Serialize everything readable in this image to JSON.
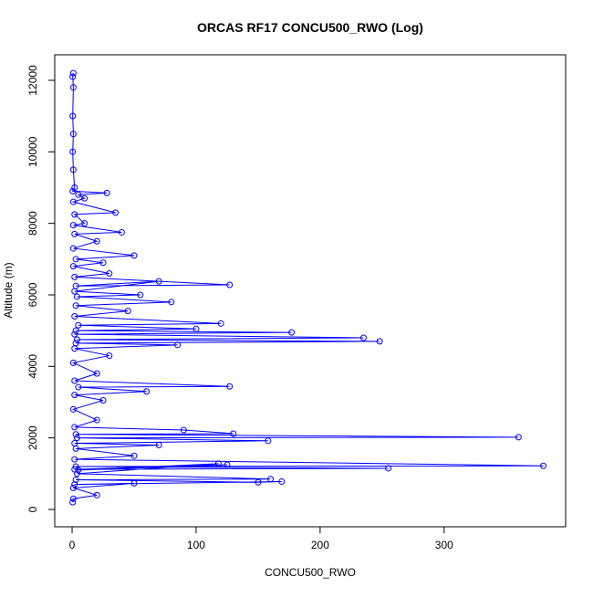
{
  "chart_data": {
    "type": "line",
    "title": "ORCAS RF17 CONCU500_RWO (Log)",
    "x_label": "CONCU500_RWO",
    "y_label": "Altitude (m)",
    "color": "#0000ff",
    "x": [
      1,
      0.5,
      1,
      0.5,
      1,
      0.5,
      1,
      2,
      0.5,
      28,
      5,
      10,
      1,
      35,
      2,
      10,
      1,
      40,
      2,
      20,
      1,
      50,
      3,
      25,
      1,
      30,
      2,
      127,
      3,
      70,
      2,
      55,
      4,
      80,
      3,
      45,
      2,
      120,
      5,
      100,
      3,
      177,
      2,
      235,
      4,
      248,
      3,
      85,
      2,
      30,
      1,
      20,
      2,
      127,
      5,
      60,
      2,
      25,
      1,
      20,
      2,
      90,
      130,
      3,
      360,
      4,
      158,
      2,
      70,
      3,
      50,
      2,
      380,
      3,
      255,
      2,
      125,
      5,
      118,
      4,
      160,
      3,
      150,
      169,
      2,
      50,
      1,
      20,
      1,
      0.5
    ],
    "values": [
      12200,
      12100,
      11800,
      11000,
      10500,
      10000,
      9500,
      9000,
      8900,
      8850,
      8800,
      8700,
      8600,
      8300,
      8250,
      8000,
      7950,
      7750,
      7700,
      7500,
      7300,
      7100,
      7000,
      6900,
      6800,
      6600,
      6500,
      6280,
      6250,
      6380,
      6100,
      6000,
      5950,
      5800,
      5700,
      5550,
      5400,
      5200,
      5150,
      5050,
      5000,
      4950,
      4900,
      4800,
      4750,
      4700,
      4650,
      4600,
      4500,
      4300,
      4100,
      3800,
      3600,
      3440,
      3420,
      3300,
      3200,
      3050,
      2800,
      2500,
      2300,
      2220,
      2120,
      2100,
      2020,
      2000,
      1920,
      1850,
      1800,
      1700,
      1500,
      1400,
      1220,
      1200,
      1150,
      1120,
      1250,
      1100,
      1280,
      1000,
      850,
      830,
      760,
      780,
      700,
      730,
      600,
      400,
      300,
      200
    ],
    "xlim": [
      -14,
      398
    ],
    "ylim": [
      -485,
      12714
    ],
    "xticks": [
      0,
      100,
      200,
      300
    ],
    "yticks": [
      0,
      2000,
      4000,
      6000,
      8000,
      10000,
      12000
    ]
  }
}
